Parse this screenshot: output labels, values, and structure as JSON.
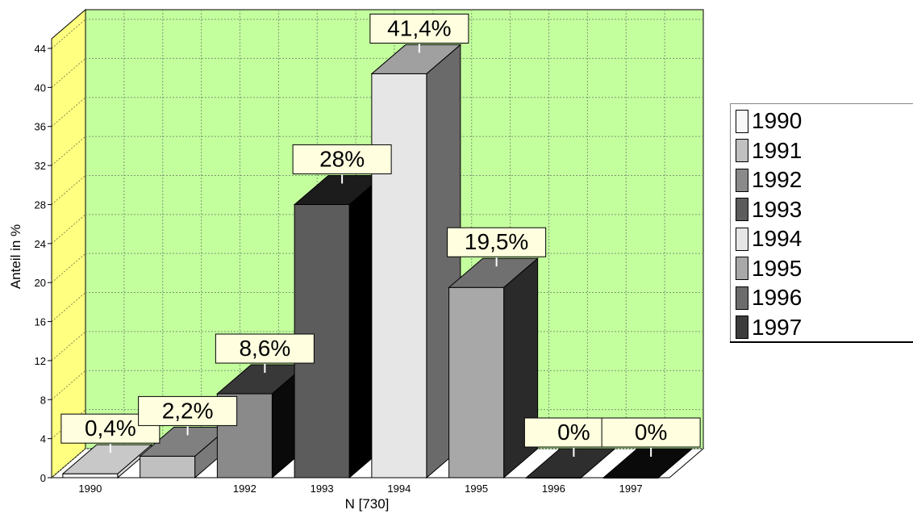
{
  "chart_data": {
    "type": "bar",
    "title": "",
    "ylabel": "Anteil in %",
    "xlabel": "N [730]",
    "ylim": [
      0,
      46
    ],
    "yticks": [
      0,
      4,
      8,
      12,
      16,
      20,
      24,
      28,
      32,
      36,
      40,
      44
    ],
    "grid": true,
    "legend_position": "right",
    "categories": [
      "1990",
      "1991",
      "1992",
      "1993",
      "1994",
      "1995",
      "1996",
      "1997"
    ],
    "x_tick_labels": [
      "1990",
      "",
      "1992",
      "1993",
      "1994",
      "1995",
      "1996",
      "1997"
    ],
    "values": [
      0.4,
      2.2,
      8.6,
      28,
      41.4,
      19.5,
      0,
      0
    ],
    "data_labels": [
      "0,4%",
      "2,2%",
      "8,6%",
      "28%",
      "41,4%",
      "19,5%",
      "0%",
      "0%"
    ],
    "colors": {
      "wall": "#c4ff9e",
      "side_wall": "#ffff80",
      "label_box": "#ffffe0",
      "bars": [
        "#f8f8f8",
        "#c0c0c0",
        "#8a8a8a",
        "#5c5c5c",
        "#e6e6e6",
        "#a8a8a8",
        "#6c6c6c",
        "#3c3c3c"
      ],
      "bar_tops": [
        "#c8c8c8",
        "#808080",
        "#383838",
        "#1c1c1c",
        "#a0a0a0",
        "#707070",
        "#2e2e2e",
        "#0a0a0a"
      ],
      "bar_sides": [
        "#d8d8d8",
        "#7a7a7a",
        "#0a0a0a",
        "#000000",
        "#6a6a6a",
        "#2a2a2a",
        "#202020",
        "#000000"
      ]
    }
  },
  "legend": {
    "items": [
      {
        "label": "1990",
        "color": "#f8f8f8"
      },
      {
        "label": "1991",
        "color": "#c0c0c0"
      },
      {
        "label": "1992",
        "color": "#8a8a8a"
      },
      {
        "label": "1993",
        "color": "#5c5c5c"
      },
      {
        "label": "1994",
        "color": "#e6e6e6"
      },
      {
        "label": "1995",
        "color": "#a8a8a8"
      },
      {
        "label": "1996",
        "color": "#6c6c6c"
      },
      {
        "label": "1997",
        "color": "#3c3c3c"
      }
    ]
  }
}
